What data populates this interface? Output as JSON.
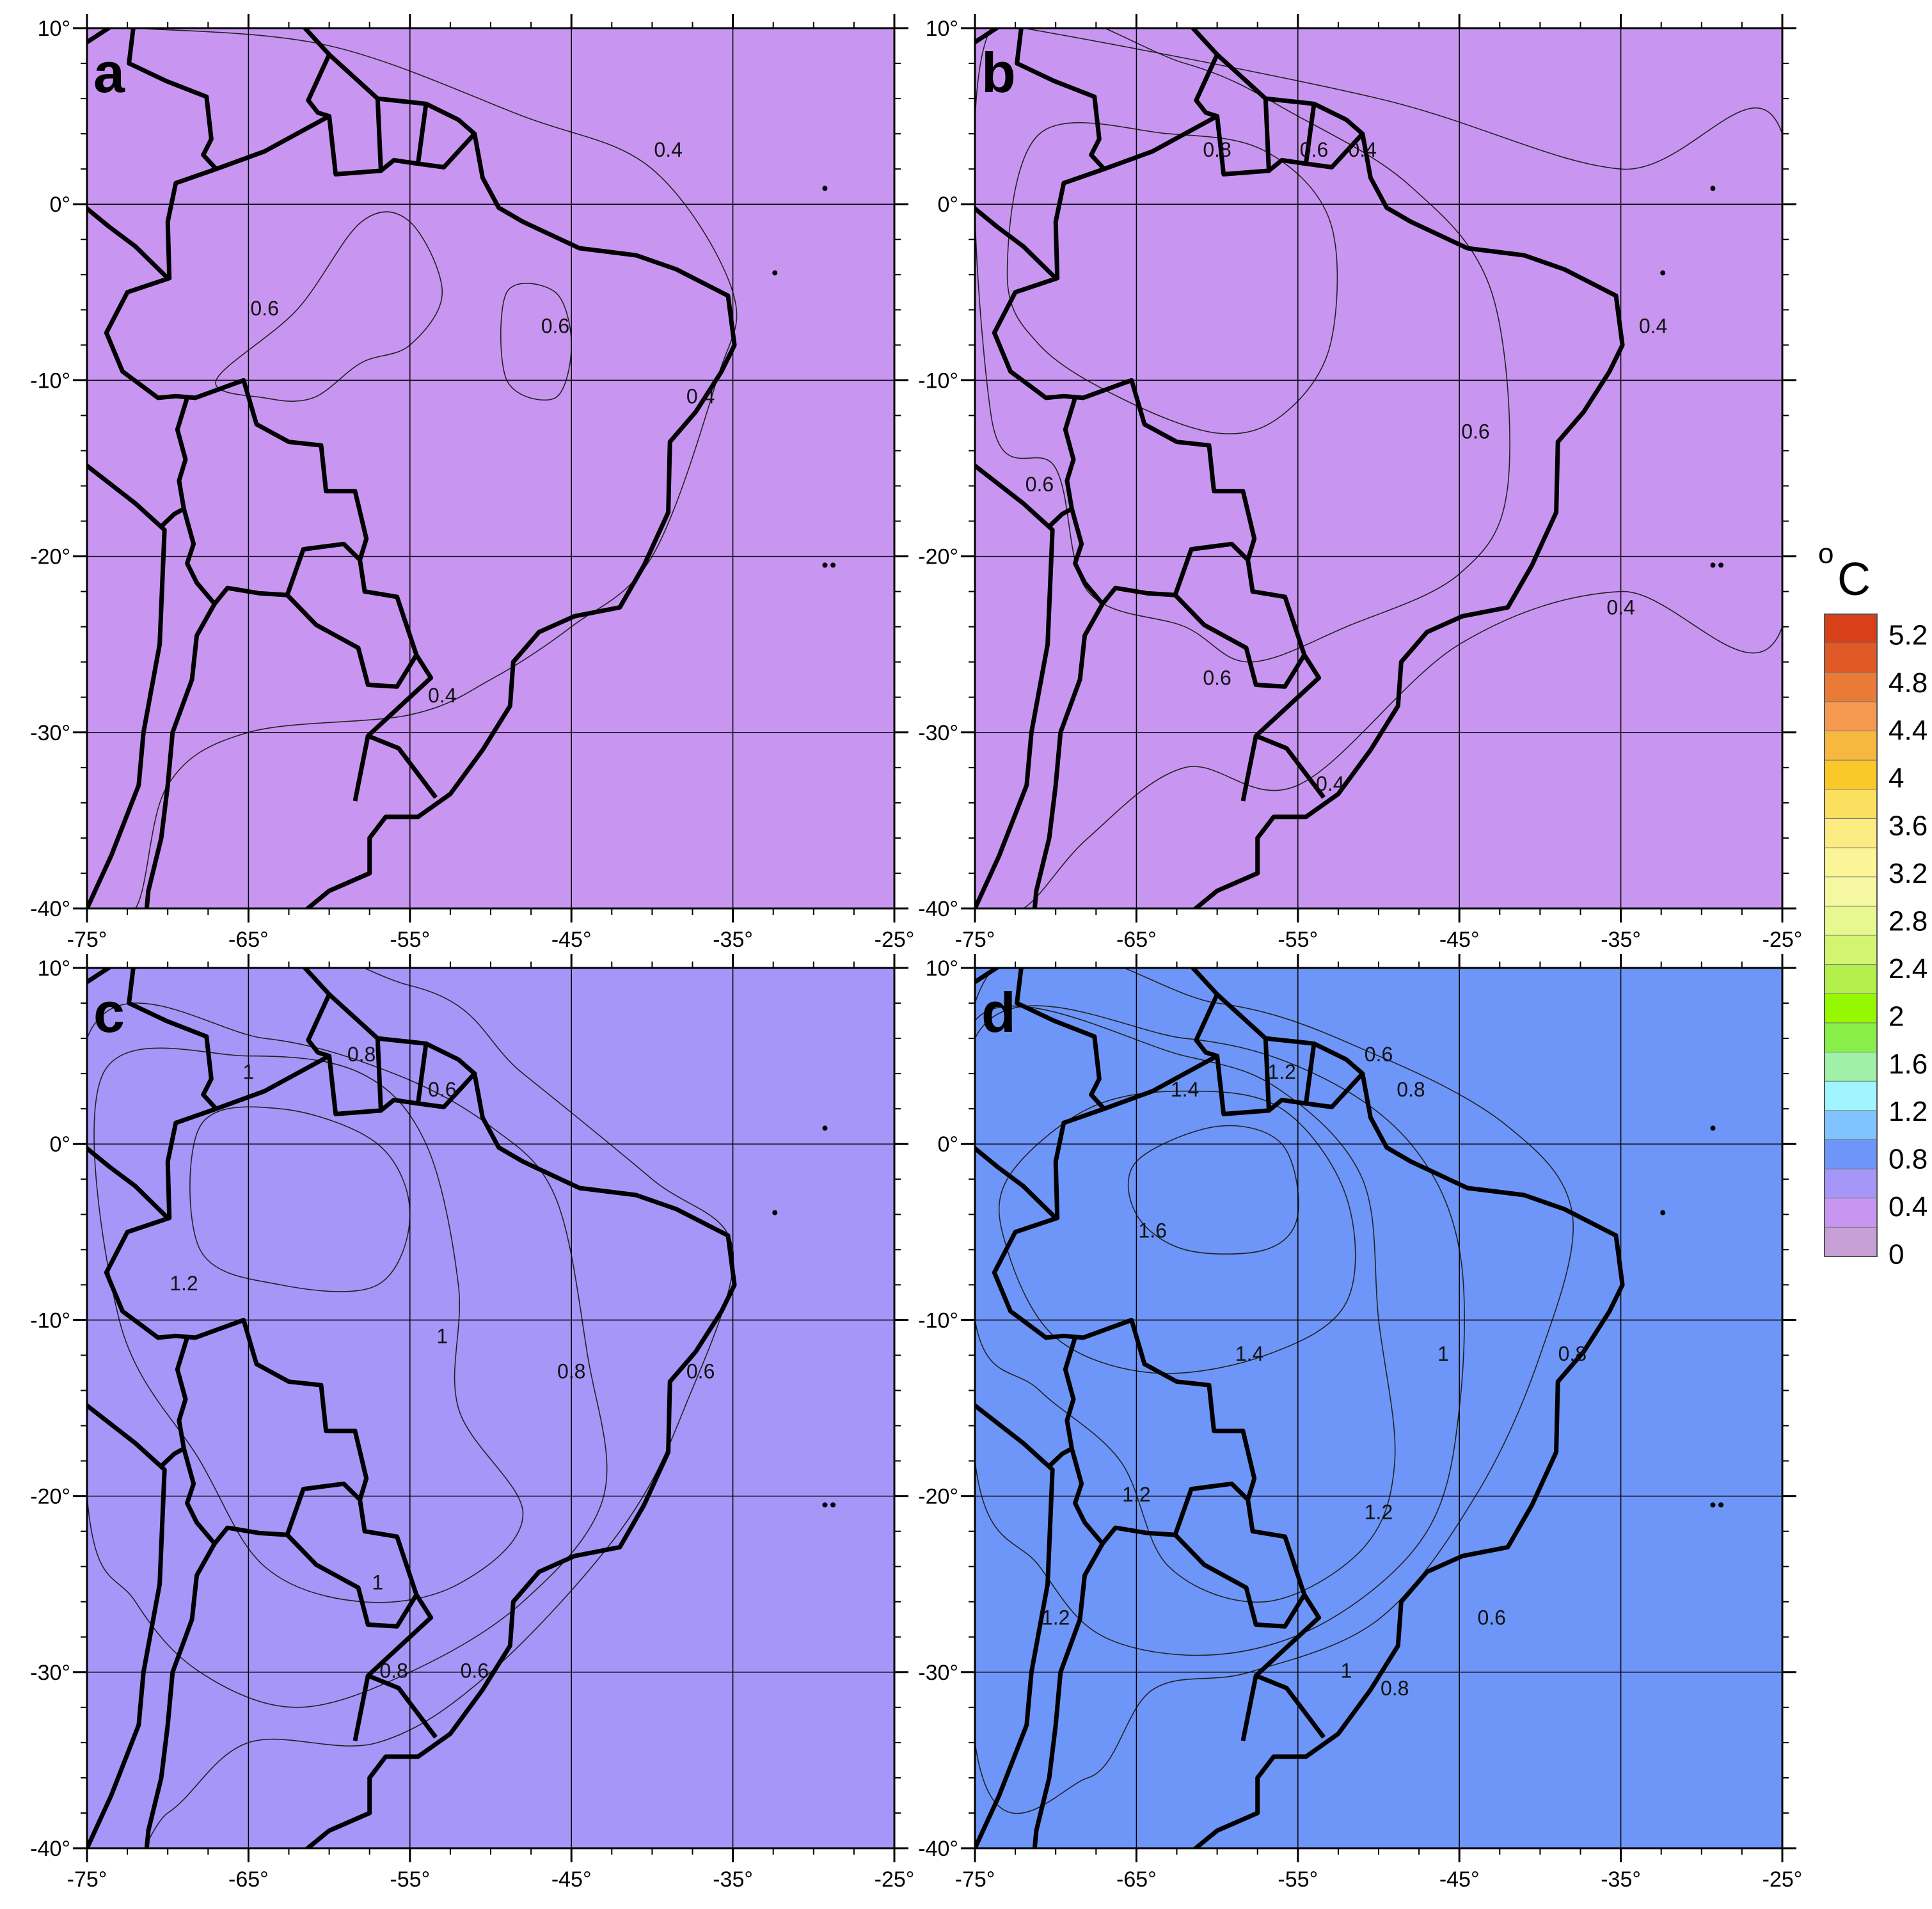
{
  "figure": {
    "panels": [
      {
        "letter": "a",
        "background": "#c896f0",
        "contours": [
          {
            "level": 0.4,
            "color": "#a696f8",
            "points": [
              [
                -72,
                10
              ],
              [
                -60,
                9
              ],
              [
                -48,
                5
              ],
              [
                -40,
                2
              ],
              [
                -35,
                -5
              ],
              [
                -36,
                -10
              ],
              [
                -40,
                -20
              ],
              [
                -45,
                -24
              ],
              [
                -50,
                -27
              ],
              [
                -55,
                -29
              ],
              [
                -65,
                -30
              ],
              [
                -70,
                -33
              ],
              [
                -72,
                -40
              ],
              [
                -75,
                -40
              ],
              [
                -75,
                10
              ]
            ]
          },
          {
            "level": 0.6,
            "color": "#7a9af8",
            "points": [
              [
                -67,
                -10
              ],
              [
                -62,
                -6
              ],
              [
                -58,
                -1
              ],
              [
                -55,
                -1
              ],
              [
                -53,
                -5
              ],
              [
                -55,
                -8
              ],
              [
                -58,
                -9
              ],
              [
                -61,
                -11
              ],
              [
                -64,
                -11
              ]
            ]
          },
          {
            "level": 0.6,
            "color": "#7a9af8",
            "points": [
              [
                -49,
                -5
              ],
              [
                -46,
                -5
              ],
              [
                -45,
                -8
              ],
              [
                -46,
                -11
              ],
              [
                -49,
                -10
              ]
            ]
          }
        ],
        "labels": [
          {
            "text": "0.4",
            "lon": -39,
            "lat": 3
          },
          {
            "text": "0.6",
            "lon": -64,
            "lat": -6
          },
          {
            "text": "0.6",
            "lon": -46,
            "lat": -7
          },
          {
            "text": "0.4",
            "lon": -37,
            "lat": -11
          },
          {
            "text": "0.4",
            "lon": -53,
            "lat": -28
          }
        ]
      },
      {
        "letter": "b",
        "background": "#c896f0",
        "contours": [
          {
            "level": 0.4,
            "color": "#a696f8",
            "points": [
              [
                -72,
                10
              ],
              [
                -50,
                6
              ],
              [
                -35,
                2
              ],
              [
                -25,
                4
              ],
              [
                -25,
                -24
              ],
              [
                -35,
                -22
              ],
              [
                -45,
                -25
              ],
              [
                -55,
                -33
              ],
              [
                -62,
                -32
              ],
              [
                -68,
                -36
              ],
              [
                -72,
                -40
              ],
              [
                -75,
                -40
              ],
              [
                -75,
                10
              ]
            ]
          },
          {
            "level": 0.6,
            "color": "#7a9af8",
            "points": [
              [
                -74,
                10
              ],
              [
                -62,
                8
              ],
              [
                -55,
                5
              ],
              [
                -48,
                1
              ],
              [
                -43,
                -5
              ],
              [
                -42,
                -16
              ],
              [
                -45,
                -21
              ],
              [
                -52,
                -24
              ],
              [
                -58,
                -26
              ],
              [
                -62,
                -24
              ],
              [
                -68,
                -22
              ],
              [
                -70,
                -15
              ],
              [
                -74,
                -12
              ]
            ]
          },
          {
            "level": 0.8,
            "color": "#80c4ff",
            "points": [
              [
                -71,
                4
              ],
              [
                -63,
                4
              ],
              [
                -57,
                3
              ],
              [
                -53,
                -1
              ],
              [
                -53,
                -8
              ],
              [
                -56,
                -12
              ],
              [
                -60,
                -13
              ],
              [
                -66,
                -11
              ],
              [
                -71,
                -8
              ],
              [
                -73,
                -4
              ]
            ]
          }
        ],
        "labels": [
          {
            "text": "0.8",
            "lon": -60,
            "lat": 3
          },
          {
            "text": "0.6",
            "lon": -54,
            "lat": 3
          },
          {
            "text": "0.4",
            "lon": -51,
            "lat": 3
          },
          {
            "text": "0.6",
            "lon": -44,
            "lat": -13
          },
          {
            "text": "0.4",
            "lon": -33,
            "lat": -7
          },
          {
            "text": "0.6",
            "lon": -71,
            "lat": -16
          },
          {
            "text": "0.6",
            "lon": -60,
            "lat": -27
          },
          {
            "text": "0.4",
            "lon": -35,
            "lat": -23
          },
          {
            "text": "0.4",
            "lon": -53,
            "lat": -33
          }
        ]
      },
      {
        "letter": "c",
        "background": "#a696f8",
        "contours": [
          {
            "level": 0.6,
            "color": "#7a9af8",
            "points": [
              [
                -75,
                10
              ],
              [
                -55,
                9
              ],
              [
                -48,
                4
              ],
              [
                -40,
                -2
              ],
              [
                -35,
                -6
              ],
              [
                -38,
                -15
              ],
              [
                -42,
                -22
              ],
              [
                -50,
                -30
              ],
              [
                -57,
                -34
              ],
              [
                -65,
                -34
              ],
              [
                -70,
                -38
              ],
              [
                -75,
                -40
              ]
            ]
          },
          {
            "level": 0.8,
            "color": "#80c4ff",
            "points": [
              [
                -75,
                6
              ],
              [
                -64,
                6
              ],
              [
                -56,
                4
              ],
              [
                -50,
                1
              ],
              [
                -46,
                -3
              ],
              [
                -44,
                -12
              ],
              [
                -43,
                -20
              ],
              [
                -48,
                -26
              ],
              [
                -55,
                -30
              ],
              [
                -62,
                -32
              ],
              [
                -68,
                -30
              ],
              [
                -72,
                -26
              ],
              [
                -75,
                -20
              ]
            ]
          },
          {
            "level": 1.0,
            "color": "#a0f5ff",
            "points": [
              [
                -74,
                4
              ],
              [
                -65,
                5
              ],
              [
                -58,
                4
              ],
              [
                -54,
                0
              ],
              [
                -52,
                -8
              ],
              [
                -52,
                -15
              ],
              [
                -48,
                -21
              ],
              [
                -52,
                -25
              ],
              [
                -58,
                -26
              ],
              [
                -64,
                -24
              ],
              [
                -68,
                -18
              ],
              [
                -73,
                -10
              ]
            ]
          },
          {
            "level": 1.2,
            "color": "#a0f0a8",
            "points": [
              [
                -68,
                1
              ],
              [
                -63,
                2
              ],
              [
                -57,
                0
              ],
              [
                -55,
                -4
              ],
              [
                -57,
                -8
              ],
              [
                -63,
                -8
              ],
              [
                -68,
                -6
              ]
            ]
          }
        ],
        "labels": [
          {
            "text": "1",
            "lon": -65,
            "lat": 4
          },
          {
            "text": "0.8",
            "lon": -58,
            "lat": 5
          },
          {
            "text": "0.6",
            "lon": -53,
            "lat": 3
          },
          {
            "text": "1.2",
            "lon": -69,
            "lat": -8
          },
          {
            "text": "1",
            "lon": -53,
            "lat": -11
          },
          {
            "text": "0.8",
            "lon": -45,
            "lat": -13
          },
          {
            "text": "0.6",
            "lon": -37,
            "lat": -13
          },
          {
            "text": "1",
            "lon": -57,
            "lat": -25
          },
          {
            "text": "0.8",
            "lon": -56,
            "lat": -30
          },
          {
            "text": "0.6",
            "lon": -51,
            "lat": -30
          }
        ]
      },
      {
        "letter": "d",
        "background": "#6e96f8",
        "contours": [
          {
            "level": 0.8,
            "color": "#80c4ff",
            "points": [
              [
                -75,
                8
              ],
              [
                -60,
                8
              ],
              [
                -50,
                5
              ],
              [
                -42,
                1
              ],
              [
                -38,
                -4
              ],
              [
                -40,
                -12
              ],
              [
                -44,
                -20
              ],
              [
                -50,
                -27
              ],
              [
                -58,
                -30
              ],
              [
                -64,
                -31
              ],
              [
                -68,
                -36
              ],
              [
                -75,
                -34
              ]
            ]
          },
          {
            "level": 1.0,
            "color": "#a0f5ff",
            "points": [
              [
                -75,
                6
              ],
              [
                -62,
                6
              ],
              [
                -54,
                4
              ],
              [
                -48,
                0
              ],
              [
                -45,
                -6
              ],
              [
                -45,
                -15
              ],
              [
                -47,
                -22
              ],
              [
                -53,
                -27
              ],
              [
                -60,
                -29
              ],
              [
                -67,
                -28
              ],
              [
                -71,
                -24
              ],
              [
                -75,
                -18
              ]
            ]
          },
          {
            "level": 1.2,
            "color": "#a0f0a8",
            "points": [
              [
                -75,
                7
              ],
              [
                -62,
                5
              ],
              [
                -56,
                3
              ],
              [
                -51,
                -2
              ],
              [
                -50,
                -10
              ],
              [
                -49,
                -18
              ],
              [
                -51,
                -23
              ],
              [
                -57,
                -26
              ],
              [
                -63,
                -24
              ],
              [
                -66,
                -18
              ],
              [
                -71,
                -14
              ],
              [
                -75,
                -10
              ]
            ]
          },
          {
            "level": 1.4,
            "color": "#c8f060",
            "points": [
              [
                -73,
                -2
              ],
              [
                -68,
                2
              ],
              [
                -62,
                3
              ],
              [
                -56,
                2
              ],
              [
                -52,
                -3
              ],
              [
                -52,
                -9
              ],
              [
                -57,
                -12
              ],
              [
                -64,
                -13
              ],
              [
                -70,
                -11
              ],
              [
                -73,
                -6
              ]
            ]
          },
          {
            "level": 1.6,
            "color": "#96f800",
            "points": [
              [
                -65,
                -1
              ],
              [
                -60,
                1
              ],
              [
                -56,
                0
              ],
              [
                -55,
                -4
              ],
              [
                -57,
                -6
              ],
              [
                -62,
                -6
              ],
              [
                -65,
                -4
              ]
            ]
          }
        ],
        "labels": [
          {
            "text": "0.6",
            "lon": -50,
            "lat": 5
          },
          {
            "text": "1.4",
            "lon": -62,
            "lat": 3
          },
          {
            "text": "1.2",
            "lon": -56,
            "lat": 4
          },
          {
            "text": "0.8",
            "lon": -48,
            "lat": 3
          },
          {
            "text": "1.6",
            "lon": -64,
            "lat": -5
          },
          {
            "text": "1.4",
            "lon": -58,
            "lat": -12
          },
          {
            "text": "1",
            "lon": -46,
            "lat": -12
          },
          {
            "text": "0.8",
            "lon": -38,
            "lat": -12
          },
          {
            "text": "1.2",
            "lon": -65,
            "lat": -20
          },
          {
            "text": "1.2",
            "lon": -50,
            "lat": -21
          },
          {
            "text": "1.2",
            "lon": -70,
            "lat": -27
          },
          {
            "text": "0.6",
            "lon": -43,
            "lat": -27
          },
          {
            "text": "1",
            "lon": -52,
            "lat": -30
          },
          {
            "text": "0.8",
            "lon": -49,
            "lat": -31
          }
        ]
      }
    ],
    "lat_ticks": [
      "10°",
      "0°",
      "-10°",
      "-20°",
      "-30°",
      "-40°"
    ],
    "lon_ticks": [
      "-75°",
      "-65°",
      "-55°",
      "-45°",
      "-35°",
      "-25°"
    ],
    "legend": {
      "unit_degree": "o",
      "unit_letter": "C",
      "levels": [
        "5.2",
        "4.8",
        "4.4",
        "4",
        "3.6",
        "3.2",
        "2.8",
        "2.4",
        "2",
        "1.6",
        "1.2",
        "0.8",
        "0.4",
        "0"
      ],
      "colors": [
        "#d84018",
        "#e05a28",
        "#ea7a38",
        "#f59a50",
        "#f7b840",
        "#fac828",
        "#fbe060",
        "#fbeb80",
        "#fbf598",
        "#f5f8a0",
        "#e8f890",
        "#d2f470",
        "#b4f04c",
        "#96f800",
        "#88f048",
        "#a0f0a8",
        "#a0f5ff",
        "#80c4ff",
        "#6e96f8",
        "#a696f8",
        "#c896f0",
        "#c8a0d8"
      ]
    }
  }
}
